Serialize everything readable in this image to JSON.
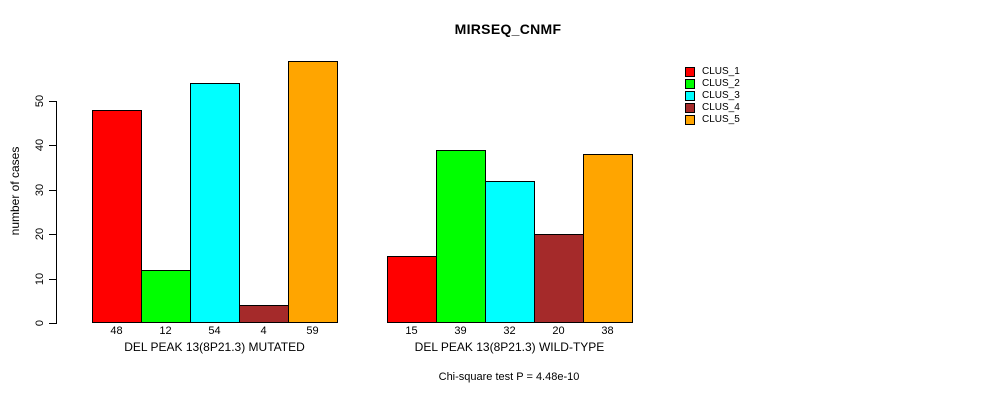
{
  "chart_data": {
    "type": "bar",
    "title": "MIRSEQ_CNMF",
    "ylabel": "number of cases",
    "note": "Chi-square test P = 4.48e-10",
    "ylim": [
      0,
      60
    ],
    "yticks": [
      0,
      10,
      20,
      30,
      40,
      50
    ],
    "grid": false,
    "legend_position": "right",
    "bar_value_labels_shown": true,
    "categories": [
      "DEL PEAK 13(8P21.3) MUTATED",
      "DEL PEAK 13(8P21.3) WILD-TYPE"
    ],
    "series": [
      {
        "name": "CLUS_1",
        "color": "#FF0000",
        "values": [
          48,
          15
        ]
      },
      {
        "name": "CLUS_2",
        "color": "#00FF00",
        "values": [
          12,
          39
        ]
      },
      {
        "name": "CLUS_3",
        "color": "#00FFFF",
        "values": [
          54,
          32
        ]
      },
      {
        "name": "CLUS_4",
        "color": "#A52A2A",
        "values": [
          4,
          20
        ]
      },
      {
        "name": "CLUS_5",
        "color": "#FFA500",
        "values": [
          59,
          38
        ]
      }
    ]
  }
}
